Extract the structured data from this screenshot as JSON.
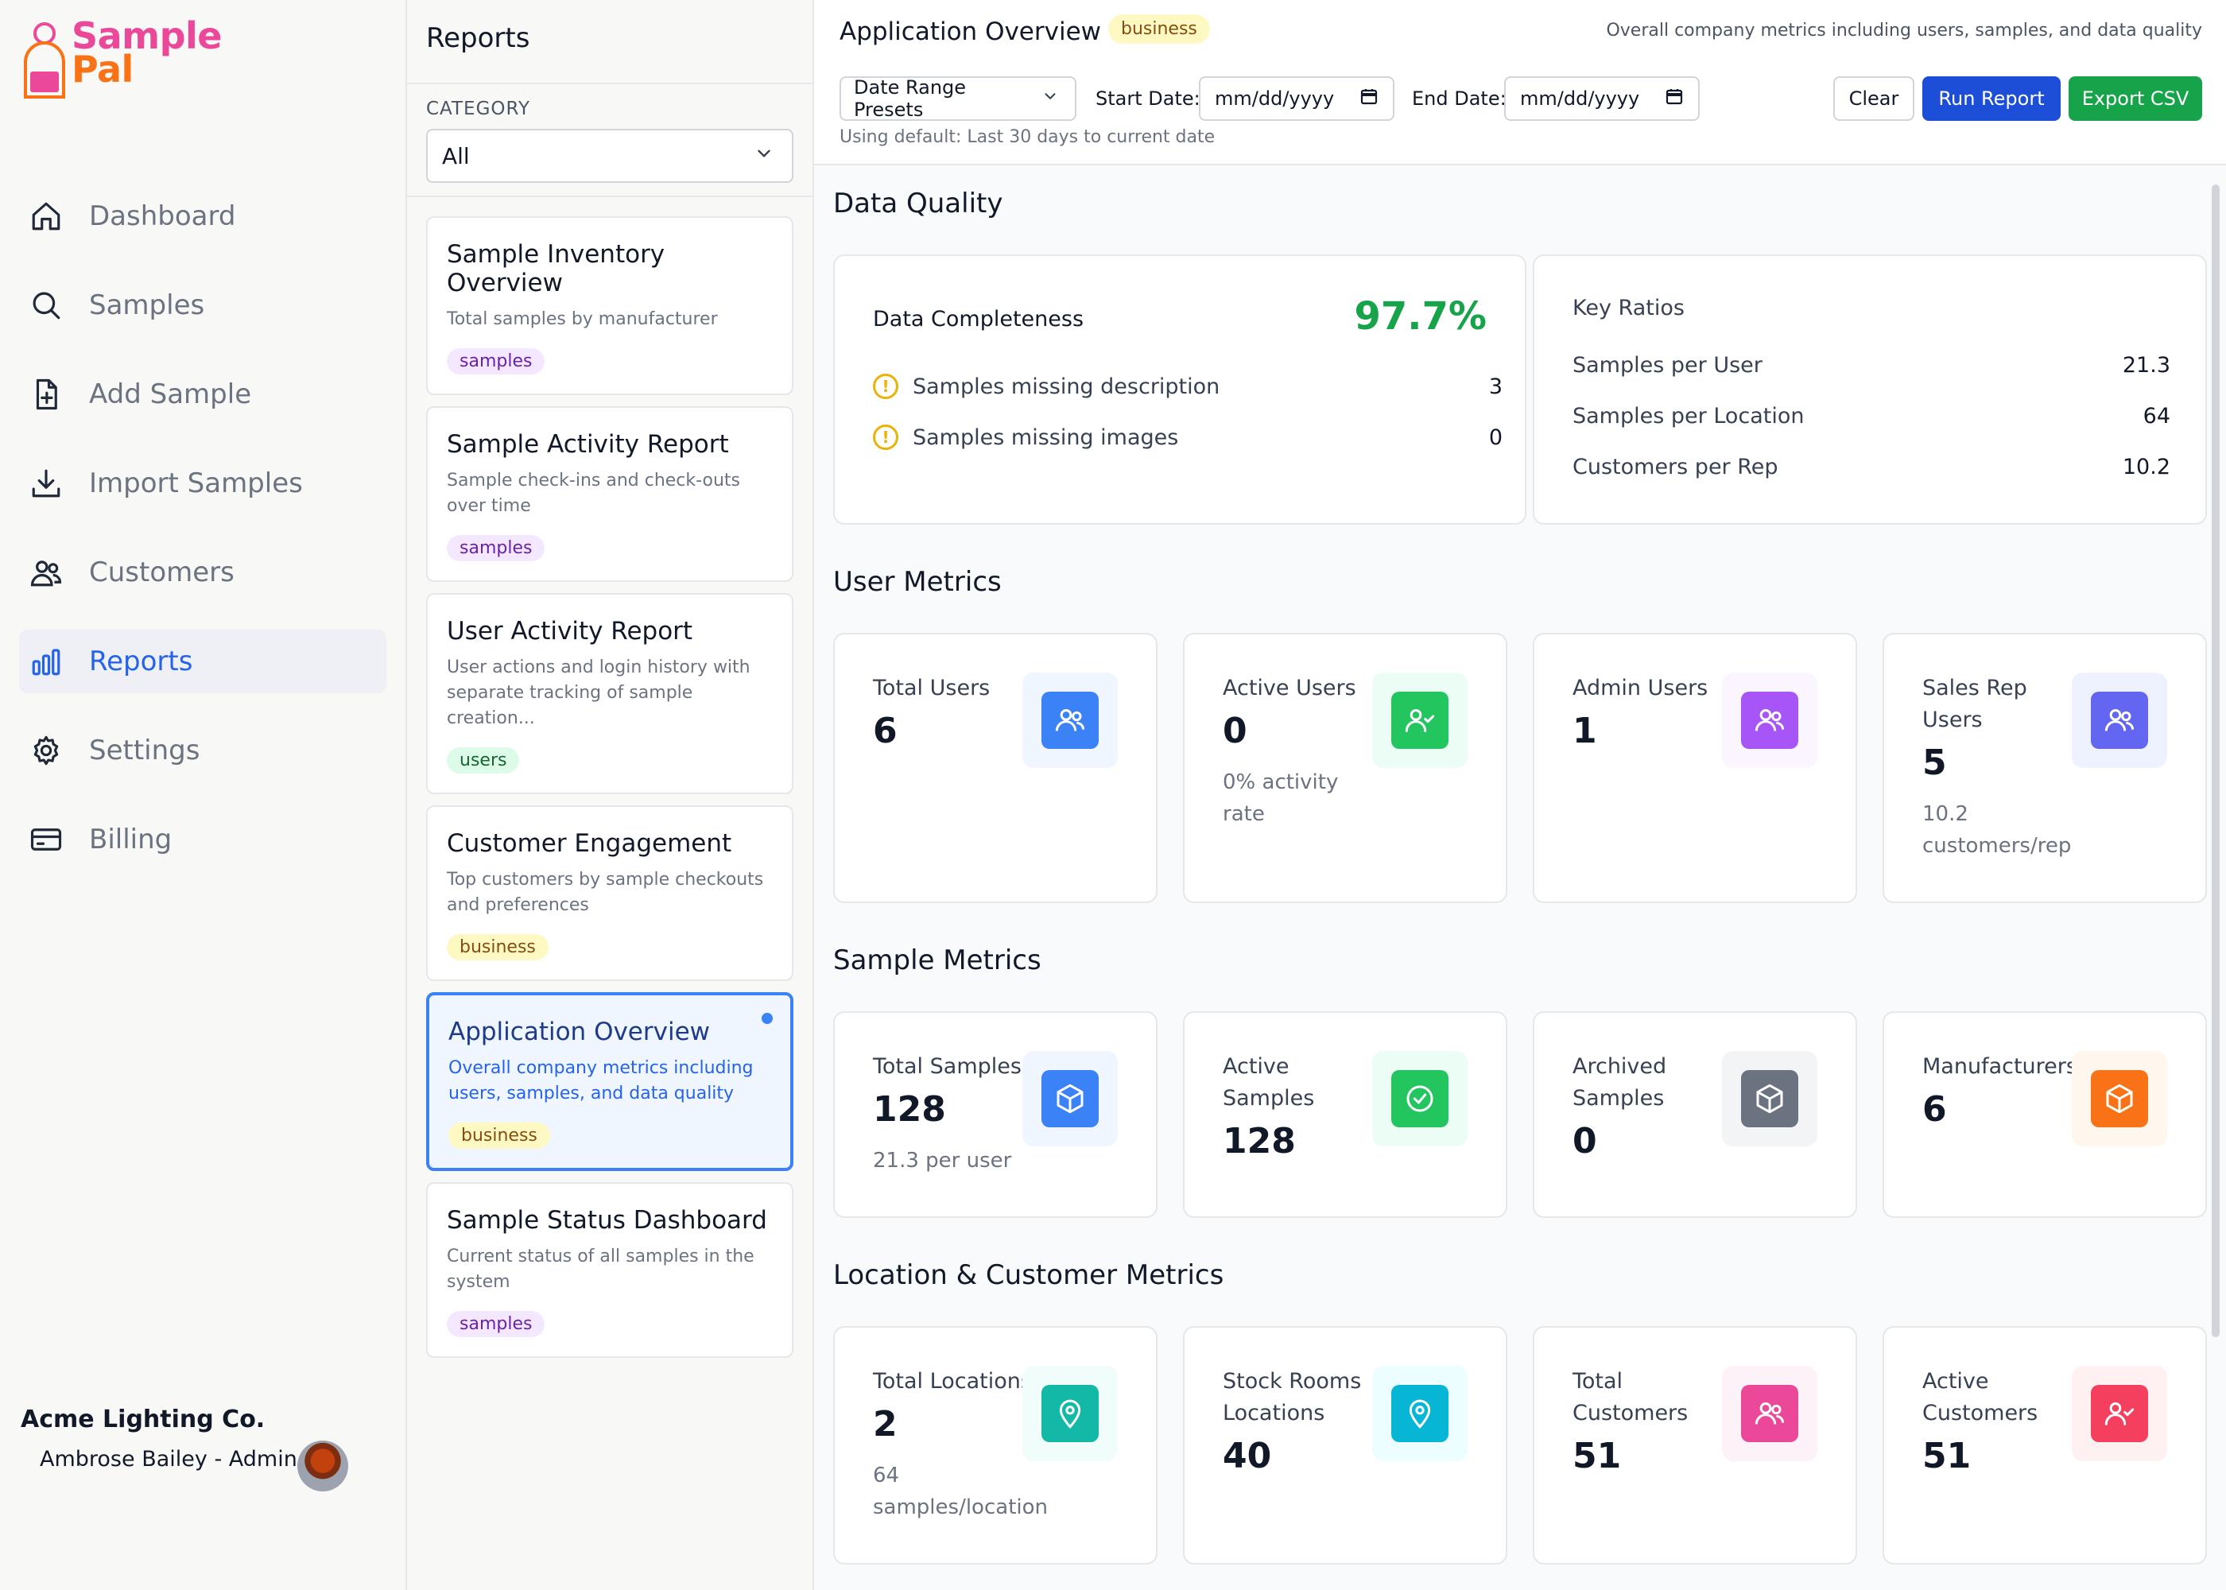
{
  "app": {
    "logo_line1": "Sample",
    "logo_line2": "Pal"
  },
  "sidebar": {
    "items": [
      {
        "label": "Dashboard",
        "icon": "home-icon"
      },
      {
        "label": "Samples",
        "icon": "search-icon"
      },
      {
        "label": "Add Sample",
        "icon": "file-plus-icon"
      },
      {
        "label": "Import Samples",
        "icon": "download-icon"
      },
      {
        "label": "Customers",
        "icon": "users-icon"
      },
      {
        "label": "Reports",
        "icon": "bar-chart-icon"
      },
      {
        "label": "Settings",
        "icon": "gear-icon"
      },
      {
        "label": "Billing",
        "icon": "credit-card-icon"
      }
    ],
    "company": "Acme Lighting Co.",
    "user": "Ambrose Bailey - Admin"
  },
  "reports": {
    "title": "Reports",
    "category_label": "CATEGORY",
    "category_value": "All",
    "cards": [
      {
        "title": "Sample Inventory Overview",
        "desc": "Total samples by manufacturer",
        "tag": "samples"
      },
      {
        "title": "Sample Activity Report",
        "desc": "Sample check-ins and check-outs over time",
        "tag": "samples"
      },
      {
        "title": "User Activity Report",
        "desc": "User actions and login history with separate tracking of sample creation...",
        "tag": "users"
      },
      {
        "title": "Customer Engagement",
        "desc": "Top customers by sample checkouts and preferences",
        "tag": "business"
      },
      {
        "title": "Application Overview",
        "desc": "Overall company metrics including users, samples, and data quality",
        "tag": "business"
      },
      {
        "title": "Sample Status Dashboard",
        "desc": "Current status of all samples in the system",
        "tag": "samples"
      }
    ]
  },
  "header": {
    "title": "Application Overview",
    "badge": "business",
    "subtitle": "Overall company metrics including users, samples, and data quality",
    "presets": "Date Range Presets",
    "start_label": "Start Date:",
    "start_placeholder": "mm/dd/yyyy",
    "end_label": "End Date:",
    "end_placeholder": "mm/dd/yyyy",
    "clear": "Clear",
    "run": "Run Report",
    "export": "Export CSV",
    "hint": "Using default: Last 30 days to current date"
  },
  "data_quality": {
    "title": "Data Quality",
    "completeness_label": "Data Completeness",
    "completeness_value": "97.7%",
    "rows": [
      {
        "label": "Samples missing description",
        "value": "3"
      },
      {
        "label": "Samples missing images",
        "value": "0"
      }
    ],
    "ratios_title": "Key Ratios",
    "ratios": [
      {
        "label": "Samples per User",
        "value": "21.3"
      },
      {
        "label": "Samples per Location",
        "value": "64"
      },
      {
        "label": "Customers per Rep",
        "value": "10.2"
      }
    ]
  },
  "user_metrics": {
    "title": "User Metrics",
    "cards": [
      {
        "label": "Total Users",
        "value": "6",
        "sub": ""
      },
      {
        "label": "Active Users",
        "value": "0",
        "sub": "0% activity rate"
      },
      {
        "label": "Admin Users",
        "value": "1",
        "sub": ""
      },
      {
        "label": "Sales Rep Users",
        "value": "5",
        "sub": "10.2 customers/rep"
      }
    ]
  },
  "sample_metrics": {
    "title": "Sample Metrics",
    "cards": [
      {
        "label": "Total Samples",
        "value": "128",
        "sub": "21.3 per user"
      },
      {
        "label": "Active Samples",
        "value": "128",
        "sub": ""
      },
      {
        "label": "Archived Samples",
        "value": "0",
        "sub": ""
      },
      {
        "label": "Manufacturers",
        "value": "6",
        "sub": ""
      }
    ]
  },
  "location_metrics": {
    "title": "Location & Customer Metrics",
    "cards": [
      {
        "label": "Total Locations",
        "value": "2",
        "sub": "64 samples/location"
      },
      {
        "label": "Stock Rooms Locations",
        "value": "40",
        "sub": ""
      },
      {
        "label": "Total Customers",
        "value": "51",
        "sub": ""
      },
      {
        "label": "Active Customers",
        "value": "51",
        "sub": ""
      }
    ]
  },
  "colors": {
    "primary": "#1d4ed8",
    "success": "#16a34a",
    "brand_pink": "#ec4899",
    "brand_orange": "#f97316"
  }
}
